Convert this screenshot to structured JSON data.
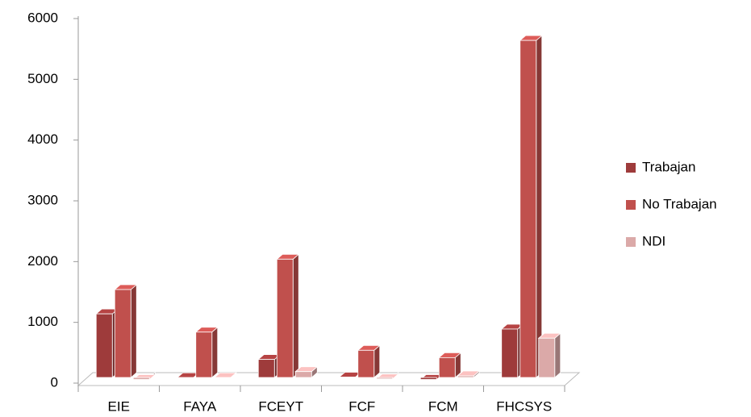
{
  "chart_data": {
    "type": "bar3d",
    "categories": [
      "EIE",
      "FAYA",
      "FCEYT",
      "FCF",
      "FCM",
      "FHCSYS"
    ],
    "series": [
      {
        "name": "Trabajan",
        "color": "#9e3b3b",
        "values": [
          1100,
          50,
          350,
          60,
          20,
          850
        ]
      },
      {
        "name": "No Trabajan",
        "color": "#c0504d",
        "values": [
          1500,
          800,
          2000,
          500,
          380,
          5600
        ]
      },
      {
        "name": "NDI",
        "color": "#dba9a8",
        "values": [
          20,
          50,
          150,
          30,
          80,
          700
        ]
      }
    ],
    "ylim": [
      0,
      6000
    ],
    "yticks": [
      0,
      1000,
      2000,
      3000,
      4000,
      5000,
      6000
    ],
    "legend": "right"
  }
}
